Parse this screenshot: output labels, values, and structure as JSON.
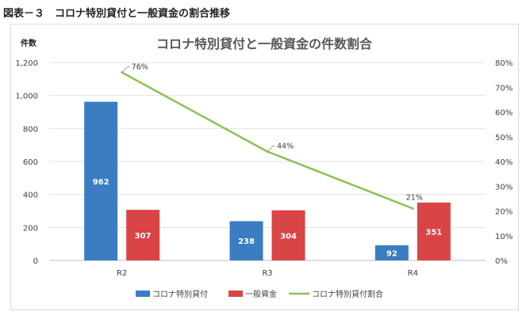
{
  "figure_caption": "図表－３　コロナ特別貸付と一般資金の割合推移",
  "chart_data": {
    "type": "bar+line",
    "title": "コロナ特別貸付と一般資金の件数割合",
    "ylabel_left": "件数",
    "categories": [
      "R2",
      "R3",
      "R4"
    ],
    "y_left_ticks": [
      "0",
      "200",
      "400",
      "600",
      "800",
      "1,000",
      "1,200"
    ],
    "y_right_ticks": [
      "0%",
      "10%",
      "20%",
      "30%",
      "40%",
      "50%",
      "60%",
      "70%",
      "80%"
    ],
    "ylim_left": [
      0,
      1200
    ],
    "ylim_right": [
      0,
      80
    ],
    "series": [
      {
        "name": "コロナ特別貸付",
        "kind": "bar",
        "color": "#3a7dc2",
        "values": [
          962,
          238,
          92
        ],
        "labels": [
          "962",
          "238",
          "92"
        ]
      },
      {
        "name": "一般資金",
        "kind": "bar",
        "color": "#d94545",
        "values": [
          307,
          304,
          351
        ],
        "labels": [
          "307",
          "304",
          "351"
        ]
      },
      {
        "name": "コロナ特別貸付割合",
        "kind": "line",
        "color": "#8cc152",
        "values": [
          76,
          44,
          21
        ],
        "labels": [
          "76%",
          "44%",
          "21%"
        ]
      }
    ],
    "legend_position": "bottom",
    "grid": true
  }
}
